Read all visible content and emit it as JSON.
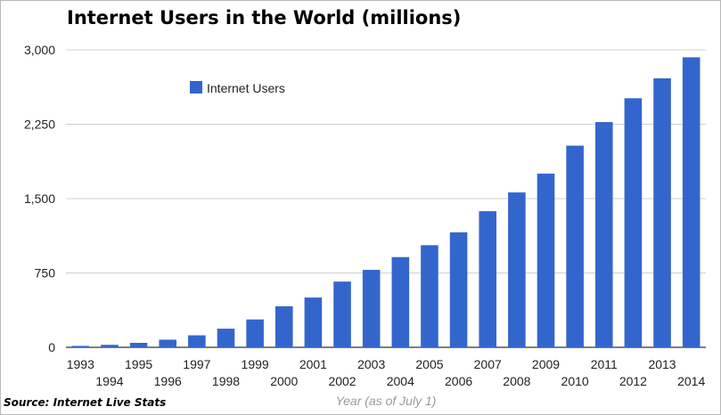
{
  "source_note": "Source: Internet Live Stats",
  "colors": {
    "bar": "#3366cc",
    "grid": "#d0d0d0",
    "baseline": "#333333"
  },
  "chart_data": {
    "type": "bar",
    "title": "Internet Users in the World (millions)",
    "xlabel": "Year (as of July 1)",
    "ylabel": "",
    "ylim": [
      0,
      3000
    ],
    "yticks": [
      "0",
      "750",
      "1,500",
      "2,250",
      "3,000"
    ],
    "ytick_values": [
      0,
      750,
      1500,
      2250,
      3000
    ],
    "grid": true,
    "legend": {
      "position": "top-left",
      "entries": [
        "Internet Users"
      ]
    },
    "categories": [
      "1993",
      "1994",
      "1995",
      "1996",
      "1997",
      "1998",
      "1999",
      "2000",
      "2001",
      "2002",
      "2003",
      "2004",
      "2005",
      "2006",
      "2007",
      "2008",
      "2009",
      "2010",
      "2011",
      "2012",
      "2013",
      "2014"
    ],
    "series": [
      {
        "name": "Internet Users",
        "values": [
          14,
          25,
          45,
          77,
          121,
          188,
          281,
          414,
          502,
          663,
          781,
          910,
          1030,
          1160,
          1373,
          1562,
          1752,
          2034,
          2272,
          2512,
          2713,
          2925
        ]
      }
    ]
  }
}
